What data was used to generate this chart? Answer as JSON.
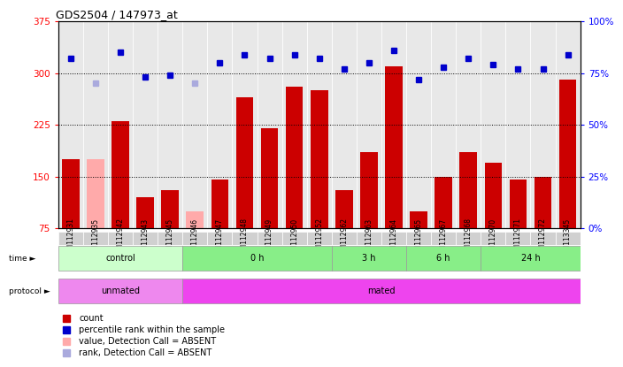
{
  "title": "GDS2504 / 147973_at",
  "samples": [
    "GSM112931",
    "GSM112935",
    "GSM112942",
    "GSM112943",
    "GSM112945",
    "GSM112946",
    "GSM112947",
    "GSM112948",
    "GSM112949",
    "GSM112950",
    "GSM112952",
    "GSM112962",
    "GSM112963",
    "GSM112964",
    "GSM112965",
    "GSM112967",
    "GSM112968",
    "GSM112970",
    "GSM112971",
    "GSM112972",
    "GSM113345"
  ],
  "count_values": [
    175,
    175,
    230,
    120,
    130,
    100,
    145,
    265,
    220,
    280,
    275,
    130,
    185,
    310,
    100,
    150,
    185,
    170,
    145,
    150,
    290
  ],
  "count_absent": [
    false,
    true,
    false,
    false,
    false,
    true,
    false,
    false,
    false,
    false,
    false,
    false,
    false,
    false,
    false,
    false,
    false,
    false,
    false,
    false,
    false
  ],
  "percentile_values": [
    82,
    70,
    85,
    73,
    74,
    70,
    80,
    84,
    82,
    84,
    82,
    77,
    80,
    86,
    72,
    78,
    82,
    79,
    77,
    77,
    84
  ],
  "percentile_absent": [
    false,
    true,
    false,
    false,
    false,
    true,
    false,
    false,
    false,
    false,
    false,
    false,
    false,
    false,
    false,
    false,
    false,
    false,
    false,
    false,
    false
  ],
  "ylim_left": [
    75,
    375
  ],
  "ylim_right": [
    0,
    100
  ],
  "yticks_left": [
    75,
    150,
    225,
    300,
    375
  ],
  "yticks_right": [
    0,
    25,
    50,
    75,
    100
  ],
  "yticklabels_right": [
    "0%",
    "25%",
    "50%",
    "75%",
    "100%"
  ],
  "time_groups": [
    {
      "label": "control",
      "start": 0,
      "end": 5,
      "color": "#ccffcc"
    },
    {
      "label": "0 h",
      "start": 5,
      "end": 11,
      "color": "#88ee88"
    },
    {
      "label": "3 h",
      "start": 11,
      "end": 14,
      "color": "#88ee88"
    },
    {
      "label": "6 h",
      "start": 14,
      "end": 17,
      "color": "#88ee88"
    },
    {
      "label": "24 h",
      "start": 17,
      "end": 21,
      "color": "#88ee88"
    }
  ],
  "proto_groups": [
    {
      "label": "unmated",
      "start": 0,
      "end": 5,
      "color": "#ee88ee"
    },
    {
      "label": "mated",
      "start": 5,
      "end": 21,
      "color": "#ee44ee"
    }
  ],
  "bar_color_present": "#cc0000",
  "bar_color_absent": "#ffaaaa",
  "dot_color_present": "#0000cc",
  "dot_color_absent": "#aaaadd",
  "bar_width": 0.7,
  "dotted_lines": [
    150,
    225,
    300
  ],
  "legend_items": [
    {
      "label": "count",
      "color": "#cc0000"
    },
    {
      "label": "percentile rank within the sample",
      "color": "#0000cc"
    },
    {
      "label": "value, Detection Call = ABSENT",
      "color": "#ffaaaa"
    },
    {
      "label": "rank, Detection Call = ABSENT",
      "color": "#aaaadd"
    }
  ]
}
